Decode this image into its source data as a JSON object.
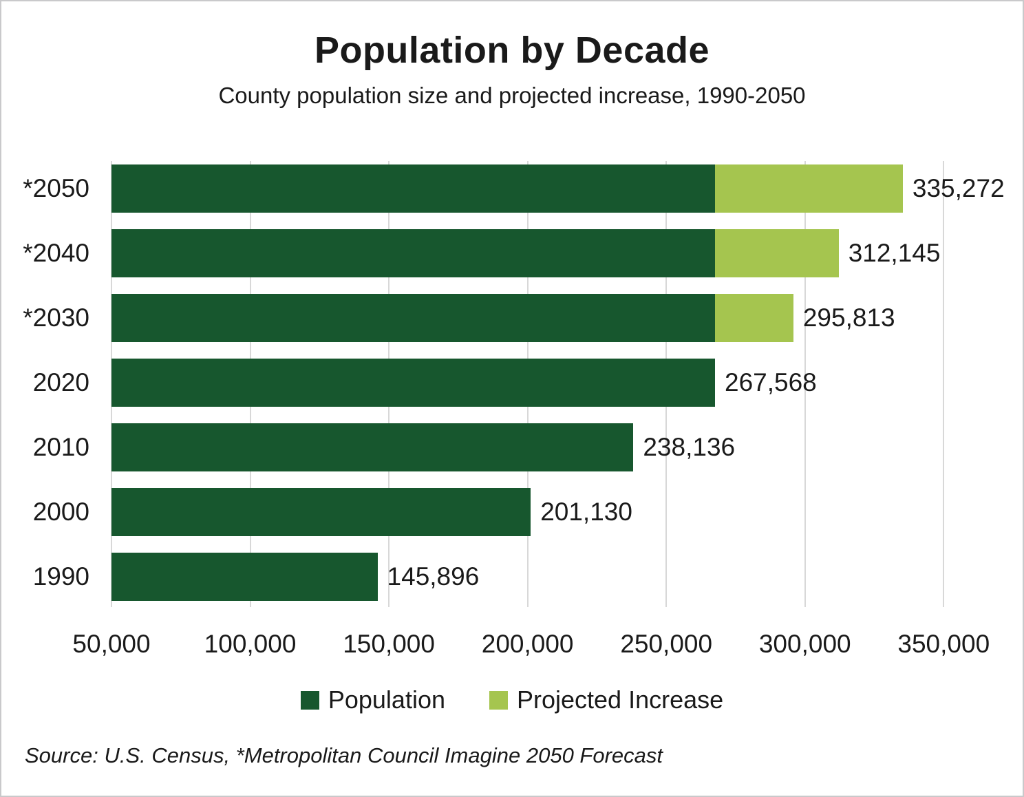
{
  "chart_data": {
    "type": "bar",
    "orientation": "horizontal",
    "title": "Population by Decade",
    "subtitle": "County population size and projected increase, 1990-2050",
    "categories": [
      "*2050",
      "*2040",
      "*2030",
      "2020",
      "2010",
      "2000",
      "1990"
    ],
    "series": [
      {
        "name": "Population",
        "color": "#17572e",
        "values": [
          267568,
          267568,
          267568,
          267568,
          238136,
          201130,
          145896
        ]
      },
      {
        "name": "Projected Increase",
        "color": "#a5c54f",
        "values": [
          67704,
          44577,
          28245,
          0,
          0,
          0,
          0
        ]
      }
    ],
    "totals": [
      335272,
      312145,
      295813,
      267568,
      238136,
      201130,
      145896
    ],
    "total_labels": [
      "335,272",
      "312,145",
      "295,813",
      "267,568",
      "238,136",
      "201,130",
      "145,896"
    ],
    "x_axis": {
      "min": 50000,
      "plot_max": 373000,
      "tick_interval": 50000,
      "ticks": [
        {
          "value": 50000,
          "label": "50,000"
        },
        {
          "value": 100000,
          "label": "100,000"
        },
        {
          "value": 150000,
          "label": "150,000"
        },
        {
          "value": 200000,
          "label": "200,000"
        },
        {
          "value": 250000,
          "label": "250,000"
        },
        {
          "value": 300000,
          "label": "300,000"
        },
        {
          "value": 350000,
          "label": "350,000"
        }
      ]
    },
    "grid": true,
    "legend_position": "bottom",
    "legend": [
      "Population",
      "Projected Increase"
    ],
    "source": "Source: U.S. Census, *Metropolitan Council Imagine 2050 Forecast"
  },
  "colors": {
    "population": "#17572e",
    "projected_increase": "#a5c54f",
    "gridline": "#d8d8d8",
    "text": "#1a1a1a",
    "border": "#c9c9cb"
  }
}
